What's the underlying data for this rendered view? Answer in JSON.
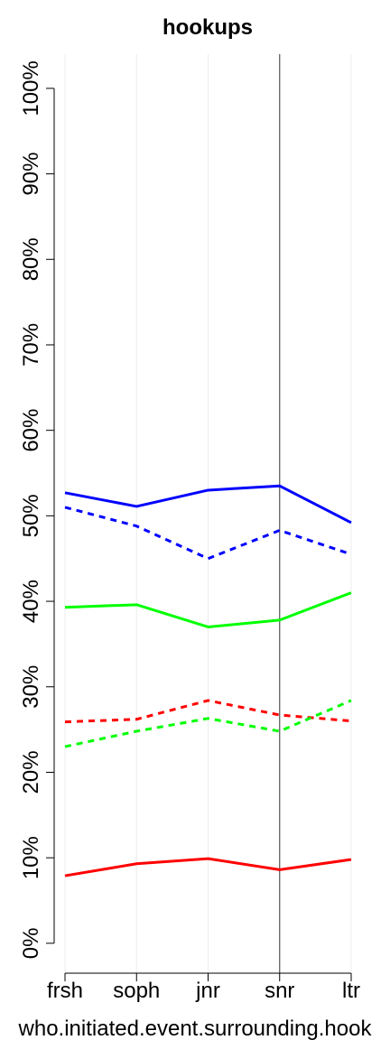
{
  "chart_data": {
    "type": "line",
    "title": "hookups",
    "xlabel": "who.initiated.event.surrounding.hook",
    "ylabel": "",
    "categories": [
      "frsh",
      "soph",
      "jnr",
      "snr",
      "ltr"
    ],
    "ylim": [
      -3.5,
      104
    ],
    "yticks": [
      0,
      10,
      20,
      30,
      40,
      50,
      60,
      70,
      80,
      90,
      100
    ],
    "ytick_labels": [
      "0%",
      "10%",
      "20%",
      "30%",
      "40%",
      "50%",
      "60%",
      "70%",
      "80%",
      "90%",
      "100%"
    ],
    "grid": "vertical",
    "reference_line_at": "snr",
    "series": [
      {
        "color": "#0000ff",
        "style": "solid",
        "values": [
          52.7,
          51.1,
          53.0,
          53.5,
          49.2
        ]
      },
      {
        "color": "#0000ff",
        "style": "dashed",
        "values": [
          51.0,
          48.8,
          45.0,
          48.3,
          45.5
        ]
      },
      {
        "color": "#00ff00",
        "style": "solid",
        "values": [
          39.3,
          39.6,
          37.0,
          37.8,
          41.0
        ]
      },
      {
        "color": "#ff0000",
        "style": "dashed",
        "values": [
          25.9,
          26.2,
          28.4,
          26.7,
          26.0
        ]
      },
      {
        "color": "#00ff00",
        "style": "dashed",
        "values": [
          23.0,
          24.8,
          26.3,
          24.8,
          28.4
        ]
      },
      {
        "color": "#ff0000",
        "style": "solid",
        "values": [
          7.9,
          9.3,
          9.9,
          8.6,
          9.8
        ]
      }
    ]
  }
}
